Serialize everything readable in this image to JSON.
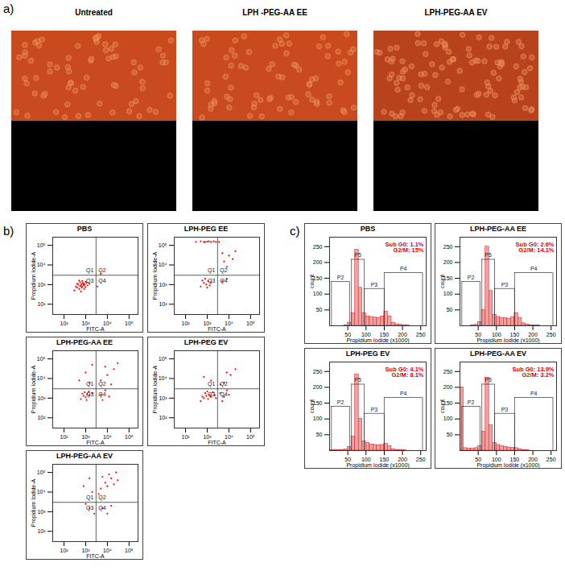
{
  "panel_labels": [
    "a)",
    "b)",
    "c)"
  ],
  "microscopy": {
    "columns": [
      "Untreated",
      "LPH -PEG-AA EE",
      "LPH-PEG-AA EV"
    ]
  },
  "chart_data": [
    {
      "type": "scatter",
      "title": "PBS",
      "x_label": "FITC-A",
      "y_label": "Propidium Iodide-A",
      "log": true,
      "xlim": [
        30,
        260000
      ],
      "ylim": [
        30,
        260000
      ],
      "xticks": [
        {
          "value": 100,
          "label": "10²"
        },
        {
          "value": 1000,
          "label": "10³"
        },
        {
          "value": 10000,
          "label": "10⁴"
        },
        {
          "value": 100000,
          "label": "10⁵"
        }
      ],
      "yticks": [
        {
          "value": 100,
          "label": "10²"
        },
        {
          "value": 1000,
          "label": "10³"
        },
        {
          "value": 10000,
          "label": "10⁴"
        },
        {
          "value": 100000,
          "label": "10⁵"
        }
      ],
      "color": "#ff0000",
      "marker": "dot",
      "quadrants": [
        "Q1",
        "Q2",
        "Q3",
        "Q4"
      ],
      "quadrant_gate": [
        3000,
        3000
      ],
      "points": [
        [
          300,
          500
        ],
        [
          400,
          700
        ],
        [
          500,
          600
        ],
        [
          600,
          900
        ],
        [
          700,
          800
        ],
        [
          800,
          1100
        ],
        [
          450,
          1000
        ],
        [
          550,
          1300
        ],
        [
          650,
          700
        ],
        [
          900,
          1000
        ],
        [
          1000,
          1400
        ],
        [
          350,
          800
        ],
        [
          750,
          1200
        ],
        [
          850,
          600
        ],
        [
          500,
          1600
        ],
        [
          1200,
          900
        ],
        [
          600,
          450
        ],
        [
          700,
          1500
        ],
        [
          400,
          1100
        ],
        [
          1100,
          1200
        ],
        [
          950,
          750
        ],
        [
          550,
          850
        ],
        [
          650,
          1050
        ],
        [
          800,
          950
        ],
        [
          1500,
          1100
        ],
        [
          3500,
          800
        ],
        [
          5000,
          3500
        ]
      ]
    },
    {
      "type": "scatter",
      "title": "LPH-PEG EE",
      "x_label": "FITC-A",
      "y_label": "Propidium Iodide-A",
      "log": true,
      "xlim": [
        30,
        260000
      ],
      "ylim": [
        30,
        260000
      ],
      "xticks": [
        {
          "value": 100,
          "label": "10²"
        },
        {
          "value": 1000,
          "label": "10³"
        },
        {
          "value": 10000,
          "label": "10⁴"
        },
        {
          "value": 100000,
          "label": "10⁵"
        }
      ],
      "yticks": [
        {
          "value": 100,
          "label": "10²"
        },
        {
          "value": 1000,
          "label": "10³"
        },
        {
          "value": 10000,
          "label": "10⁴"
        },
        {
          "value": 100000,
          "label": "10⁵"
        }
      ],
      "color": "#ff0000",
      "marker": "dot",
      "quadrants": [
        "Q1",
        "Q2",
        "Q3",
        "Q4"
      ],
      "quadrant_gate": [
        3000,
        3000
      ],
      "points": [
        [
          300,
          150000
        ],
        [
          500,
          160000
        ],
        [
          700,
          150000
        ],
        [
          1000,
          155000
        ],
        [
          1500,
          150000
        ],
        [
          2000,
          160000
        ],
        [
          2500,
          150000
        ],
        [
          800,
          145000
        ],
        [
          1200,
          160000
        ],
        [
          3500,
          150000
        ],
        [
          6000,
          15000
        ],
        [
          10000,
          30000
        ],
        [
          8000,
          8000
        ],
        [
          15000,
          20000
        ],
        [
          20000,
          50000
        ],
        [
          5000,
          40000
        ],
        [
          500,
          800
        ],
        [
          700,
          1200
        ],
        [
          900,
          1000
        ],
        [
          1100,
          1500
        ],
        [
          600,
          1600
        ],
        [
          1300,
          900
        ],
        [
          800,
          2000
        ],
        [
          1500,
          1300
        ],
        [
          1000,
          700
        ],
        [
          5000,
          1500
        ],
        [
          8000,
          2000
        ]
      ]
    },
    {
      "type": "scatter",
      "title": "LPH-PEG-AA EE",
      "x_label": "FITC-A",
      "y_label": "Propidium Iodide-A",
      "log": true,
      "xlim": [
        30,
        260000
      ],
      "ylim": [
        30,
        260000
      ],
      "xticks": [
        {
          "value": 100,
          "label": "10²"
        },
        {
          "value": 1000,
          "label": "10³"
        },
        {
          "value": 10000,
          "label": "10⁴"
        },
        {
          "value": 100000,
          "label": "10⁵"
        }
      ],
      "yticks": [
        {
          "value": 100,
          "label": "10²"
        },
        {
          "value": 1000,
          "label": "10³"
        },
        {
          "value": 10000,
          "label": "10⁴"
        },
        {
          "value": 100000,
          "label": "10⁵"
        }
      ],
      "color": "#ff0000",
      "marker": "dot",
      "quadrants": [
        "Q1",
        "Q2",
        "Q3",
        "Q4"
      ],
      "quadrant_gate": [
        3000,
        3000
      ],
      "points": [
        [
          600,
          900
        ],
        [
          800,
          1300
        ],
        [
          1000,
          1100
        ],
        [
          1200,
          1600
        ],
        [
          900,
          2000
        ],
        [
          1500,
          1400
        ],
        [
          700,
          1700
        ],
        [
          1100,
          800
        ],
        [
          1400,
          2200
        ],
        [
          2000,
          1800
        ],
        [
          5000,
          1500
        ],
        [
          8000,
          2500
        ],
        [
          12000,
          1200
        ],
        [
          6000,
          800
        ],
        [
          5000,
          8000
        ],
        [
          10000,
          15000
        ],
        [
          20000,
          30000
        ],
        [
          8000,
          40000
        ],
        [
          30000,
          60000
        ],
        [
          15000,
          5000
        ],
        [
          500,
          8000
        ],
        [
          1000,
          20000
        ],
        [
          2000,
          50000
        ],
        [
          1500,
          6000
        ]
      ]
    },
    {
      "type": "scatter",
      "title": "LPH-PEG EV",
      "x_label": "FITC-A",
      "y_label": "Propidium Iodide-A",
      "log": true,
      "xlim": [
        30,
        260000
      ],
      "ylim": [
        30,
        260000
      ],
      "xticks": [
        {
          "value": 100,
          "label": "10²"
        },
        {
          "value": 1000,
          "label": "10³"
        },
        {
          "value": 10000,
          "label": "10⁴"
        },
        {
          "value": 100000,
          "label": "10⁵"
        }
      ],
      "yticks": [
        {
          "value": 100,
          "label": "10²"
        },
        {
          "value": 1000,
          "label": "10³"
        },
        {
          "value": 10000,
          "label": "10⁴"
        },
        {
          "value": 100000,
          "label": "10⁵"
        }
      ],
      "color": "#ff0000",
      "marker": "dot",
      "quadrants": [
        "Q1",
        "Q2",
        "Q3",
        "Q4"
      ],
      "quadrant_gate": [
        3000,
        3000
      ],
      "points": [
        [
          500,
          700
        ],
        [
          700,
          1000
        ],
        [
          900,
          1300
        ],
        [
          1100,
          900
        ],
        [
          1300,
          1500
        ],
        [
          800,
          1800
        ],
        [
          1500,
          1200
        ],
        [
          1800,
          2000
        ],
        [
          2200,
          1400
        ],
        [
          600,
          1200
        ],
        [
          1000,
          2200
        ],
        [
          2500,
          1000
        ],
        [
          4000,
          1800
        ],
        [
          6000,
          1200
        ],
        [
          8000,
          2500
        ],
        [
          5000,
          700
        ],
        [
          10000,
          1500
        ],
        [
          6000,
          6000
        ],
        [
          12000,
          15000
        ],
        [
          20000,
          30000
        ],
        [
          8000,
          20000
        ],
        [
          1500,
          8000
        ],
        [
          700,
          12000
        ],
        [
          4000,
          5000
        ]
      ]
    },
    {
      "type": "scatter",
      "title": "LPH-PEG-AA EV",
      "x_label": "FITC-A",
      "y_label": "Propidium Iodide-A",
      "log": true,
      "xlim": [
        30,
        260000
      ],
      "ylim": [
        30,
        260000
      ],
      "xticks": [
        {
          "value": 100,
          "label": "10²"
        },
        {
          "value": 1000,
          "label": "10³"
        },
        {
          "value": 10000,
          "label": "10⁴"
        },
        {
          "value": 100000,
          "label": "10⁵"
        }
      ],
      "yticks": [
        {
          "value": 100,
          "label": "10²"
        },
        {
          "value": 1000,
          "label": "10³"
        },
        {
          "value": 10000,
          "label": "10⁴"
        },
        {
          "value": 100000,
          "label": "10⁵"
        }
      ],
      "color": "#ff0000",
      "marker": "dot",
      "quadrants": [
        "Q1",
        "Q2",
        "Q3",
        "Q4"
      ],
      "quadrant_gate": [
        3000,
        3000
      ],
      "points": [
        [
          5000,
          15000
        ],
        [
          8000,
          30000
        ],
        [
          10000,
          20000
        ],
        [
          15000,
          50000
        ],
        [
          20000,
          25000
        ],
        [
          12000,
          80000
        ],
        [
          30000,
          40000
        ],
        [
          6000,
          60000
        ],
        [
          25000,
          100000
        ],
        [
          4000,
          8000
        ],
        [
          800,
          20000
        ],
        [
          1500,
          50000
        ],
        [
          2000,
          10000
        ],
        [
          1500,
          1500
        ],
        [
          2500,
          800
        ],
        [
          1000,
          2500
        ],
        [
          6000,
          1500
        ],
        [
          15000,
          2000
        ],
        [
          10000,
          800
        ]
      ]
    },
    {
      "type": "histogram",
      "title": "PBS",
      "x_label": "Propidium Iodide (x1000)",
      "y_label": "count",
      "bins": [
        0,
        10,
        20,
        30,
        40,
        50,
        60,
        70,
        80,
        90,
        100,
        110,
        120,
        130,
        140,
        150,
        160,
        170,
        180,
        190,
        200,
        210,
        220,
        230,
        240,
        250,
        260
      ],
      "counts": [
        0,
        0,
        0,
        0,
        2,
        10,
        40,
        240,
        120,
        40,
        30,
        28,
        26,
        25,
        30,
        45,
        30,
        10,
        5,
        3,
        2,
        1,
        0,
        0,
        0,
        0
      ],
      "xlim": [
        0,
        265
      ],
      "ylim": [
        0,
        280
      ],
      "xticks": [
        50,
        100,
        150,
        200,
        250
      ],
      "yticks": [
        50,
        100,
        150,
        200,
        250
      ],
      "color": "#f4a0a0",
      "annotations": [
        "Sub G0: 1.1%",
        "G2/M: 15%"
      ],
      "gates": [
        {
          "name": "P2",
          "range": [
            5,
            55
          ]
        },
        {
          "name": "P5",
          "range": [
            60,
            95
          ]
        },
        {
          "name": "P3",
          "range": [
            95,
            150
          ]
        },
        {
          "name": "P4",
          "range": [
            150,
            255
          ]
        }
      ]
    },
    {
      "type": "histogram",
      "title": "LPH-PEG-AA EE",
      "x_label": "Propidium Iodide (x1000)",
      "y_label": "count",
      "bins": [
        0,
        10,
        20,
        30,
        40,
        50,
        60,
        70,
        80,
        90,
        100,
        110,
        120,
        130,
        140,
        150,
        160,
        170,
        180,
        190,
        200,
        210,
        220,
        230,
        240,
        250,
        260
      ],
      "counts": [
        0,
        0,
        0,
        1,
        3,
        12,
        50,
        250,
        110,
        35,
        28,
        25,
        24,
        22,
        27,
        40,
        25,
        8,
        4,
        2,
        1,
        1,
        0,
        0,
        0,
        0
      ],
      "xlim": [
        0,
        265
      ],
      "ylim": [
        0,
        280
      ],
      "xticks": [
        50,
        100,
        150,
        200,
        250
      ],
      "yticks": [
        50,
        100,
        150,
        200,
        250
      ],
      "color": "#f4a0a0",
      "annotations": [
        "Sub G0: 2.6%",
        "G2/M: 14.1%"
      ],
      "gates": [
        {
          "name": "P2",
          "range": [
            5,
            55
          ]
        },
        {
          "name": "P5",
          "range": [
            60,
            95
          ]
        },
        {
          "name": "P3",
          "range": [
            95,
            150
          ]
        },
        {
          "name": "P4",
          "range": [
            150,
            255
          ]
        }
      ]
    },
    {
      "type": "histogram",
      "title": "LPH-PEG EV",
      "x_label": "Propidium Iodide (x1000)",
      "y_label": "count",
      "bins": [
        0,
        10,
        20,
        30,
        40,
        50,
        60,
        70,
        80,
        90,
        100,
        110,
        120,
        130,
        140,
        150,
        160,
        170,
        180,
        190,
        200,
        210,
        220,
        230,
        240,
        250,
        260
      ],
      "counts": [
        2,
        1,
        1,
        2,
        4,
        12,
        45,
        240,
        100,
        30,
        24,
        20,
        18,
        17,
        18,
        22,
        14,
        5,
        2,
        1,
        1,
        0,
        0,
        0,
        0,
        0
      ],
      "xlim": [
        0,
        265
      ],
      "ylim": [
        0,
        280
      ],
      "xticks": [
        50,
        100,
        150,
        200,
        250
      ],
      "yticks": [
        50,
        100,
        150,
        200,
        250
      ],
      "color": "#f4a0a0",
      "annotations": [
        "Sub G0: 4.1%",
        "G2/M: 8.1%"
      ],
      "gates": [
        {
          "name": "P2",
          "range": [
            5,
            55
          ]
        },
        {
          "name": "P5",
          "range": [
            60,
            95
          ]
        },
        {
          "name": "P3",
          "range": [
            95,
            150
          ]
        },
        {
          "name": "P4",
          "range": [
            150,
            255
          ]
        }
      ]
    },
    {
      "type": "histogram",
      "title": "LPH-PEG-AA EV",
      "x_label": "Propidium Iodide (x1000)",
      "y_label": "count",
      "bins": [
        0,
        10,
        20,
        30,
        40,
        50,
        60,
        70,
        80,
        90,
        100,
        110,
        120,
        130,
        140,
        150,
        160,
        170,
        180,
        190,
        200,
        210,
        220,
        230,
        240,
        250,
        260
      ],
      "counts": [
        200,
        8,
        6,
        6,
        8,
        15,
        60,
        230,
        80,
        25,
        18,
        15,
        12,
        10,
        9,
        8,
        5,
        2,
        1,
        0,
        0,
        0,
        0,
        0,
        0,
        0
      ],
      "xlim": [
        0,
        265
      ],
      "ylim": [
        0,
        280
      ],
      "xticks": [
        50,
        100,
        150,
        200,
        250
      ],
      "yticks": [
        50,
        100,
        150,
        200,
        250
      ],
      "color": "#f4a0a0",
      "annotations": [
        "Sub G0: 13.9%",
        "G2/M: 3.2%"
      ],
      "gates": [
        {
          "name": "P2",
          "range": [
            5,
            55
          ]
        },
        {
          "name": "P5",
          "range": [
            60,
            95
          ]
        },
        {
          "name": "P3",
          "range": [
            95,
            150
          ]
        },
        {
          "name": "P4",
          "range": [
            150,
            255
          ]
        }
      ]
    }
  ]
}
